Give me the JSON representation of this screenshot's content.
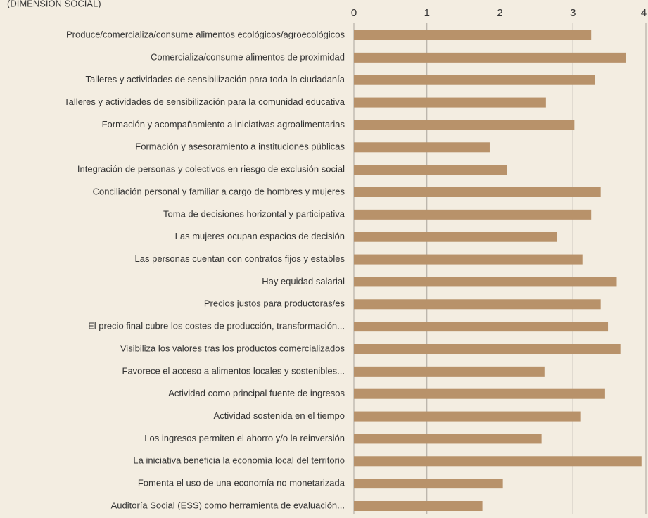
{
  "chart_data": {
    "type": "bar",
    "orientation": "horizontal",
    "title": "(DIMENSIÓN SOCIAL)",
    "categories": [
      "Produce/comercializa/consume alimentos ecológicos/agroecológicos",
      "Comercializa/consume alimentos de proximidad",
      "Talleres y actividades de sensibilización para toda la ciudadanía",
      "Talleres y actividades de sensibilización para la comunidad educativa",
      "Formación y acompañamiento a iniciativas agroalimentarias",
      "Formación y asesoramiento a instituciones públicas",
      "Integración de personas y colectivos en riesgo de exclusión social",
      "Conciliación personal y familiar a cargo de hombres y mujeres",
      "Toma de decisiones horizontal y participativa",
      "Las mujeres ocupan espacios de decisión",
      "Las personas cuentan con contratos fijos y estables",
      "Hay equidad salarial",
      "Precios justos para productoras/es",
      "El precio final cubre los costes de producción, transformación...",
      "Visibiliza los valores tras los productos comercializados",
      "Favorece el acceso a alimentos locales y sostenibles...",
      "Actividad como principal fuente de ingresos",
      "Actividad sostenida en el tiempo",
      "Los ingresos permiten el ahorro y/o la reinversión",
      "La iniciativa beneficia la economía local del territorio",
      "Fomenta el uso de una economía no monetarizada",
      "Auditoría Social (ESS) como herramienta de evaluación..."
    ],
    "values": [
      3.25,
      3.73,
      3.3,
      2.63,
      3.02,
      1.86,
      2.1,
      3.38,
      3.25,
      2.78,
      3.13,
      3.6,
      3.38,
      3.48,
      3.65,
      2.61,
      3.44,
      3.11,
      2.57,
      3.94,
      2.04,
      1.76
    ],
    "color": "#b8926a",
    "xlim": [
      0,
      4
    ],
    "xticks": [
      0,
      1,
      2,
      3,
      4
    ],
    "grid": true
  }
}
